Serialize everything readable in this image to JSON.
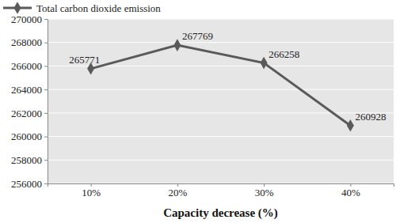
{
  "chart_data": {
    "type": "line",
    "x_label": "Capacity decrease (%)",
    "categories": [
      "10%",
      "20%",
      "30%",
      "40%"
    ],
    "series": [
      {
        "name": "Total carbon dioxide emission",
        "color": "#5a5a5a",
        "marker": "diamond",
        "values": [
          265771,
          267769,
          266258,
          260928
        ]
      }
    ],
    "ylim": [
      256000,
      270000
    ],
    "yticks": [
      256000,
      258000,
      260000,
      262000,
      264000,
      266000,
      268000,
      270000
    ],
    "grid": true,
    "data_labels": true,
    "legend": "top-left"
  }
}
